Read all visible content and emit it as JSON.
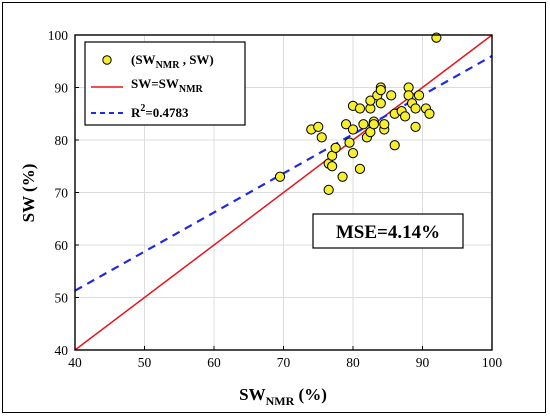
{
  "chart_data": {
    "type": "scatter",
    "xlabel": {
      "main": "SW",
      "sub": "NMR",
      "unit": " (%)"
    },
    "ylabel": "SW (%)",
    "xlim": [
      40,
      100
    ],
    "ylim": [
      40,
      100
    ],
    "xticks": [
      40,
      50,
      60,
      70,
      80,
      90,
      100
    ],
    "yticks": [
      40,
      50,
      60,
      70,
      80,
      90,
      100
    ],
    "grid": true,
    "legend_position": "top-left",
    "series": [
      {
        "name": "(SWNMR , SW)",
        "kind": "scatter",
        "color": "#f5ef2e",
        "edgecolor": "#000000",
        "points": [
          [
            69.5,
            73
          ],
          [
            74,
            82
          ],
          [
            75,
            82.5
          ],
          [
            75.5,
            80.5
          ],
          [
            76.5,
            75.5
          ],
          [
            76.5,
            70.5
          ],
          [
            77,
            77
          ],
          [
            77,
            75
          ],
          [
            77.5,
            78.5
          ],
          [
            78.5,
            73
          ],
          [
            79,
            83
          ],
          [
            79.5,
            79.5
          ],
          [
            80,
            82
          ],
          [
            80,
            86.5
          ],
          [
            80,
            77.5
          ],
          [
            81,
            86
          ],
          [
            81,
            74.5
          ],
          [
            81.5,
            83
          ],
          [
            82,
            80.5
          ],
          [
            82.5,
            86
          ],
          [
            82.5,
            87.5
          ],
          [
            82.5,
            81.5
          ],
          [
            83,
            83.5
          ],
          [
            83,
            83
          ],
          [
            83.5,
            88.5
          ],
          [
            84,
            90
          ],
          [
            84,
            87
          ],
          [
            84,
            89.5
          ],
          [
            84.5,
            82
          ],
          [
            84.5,
            83
          ],
          [
            85.5,
            88.5
          ],
          [
            86,
            79
          ],
          [
            86,
            85
          ],
          [
            87,
            85.5
          ],
          [
            87.5,
            84.5
          ],
          [
            88,
            90
          ],
          [
            88,
            88.5
          ],
          [
            88.5,
            87
          ],
          [
            89,
            82.5
          ],
          [
            89,
            86
          ],
          [
            89.5,
            88.5
          ],
          [
            90.5,
            86
          ],
          [
            91,
            85
          ],
          [
            92,
            99.5
          ]
        ]
      },
      {
        "name": "SW=SWNMR",
        "kind": "line",
        "color": "#e8141b",
        "style": "solid",
        "points": [
          [
            40,
            40
          ],
          [
            100,
            100
          ]
        ]
      },
      {
        "name": "R2=0.4783",
        "kind": "line",
        "color": "#1f2be0",
        "style": "dashed",
        "points": [
          [
            40,
            51.3
          ],
          [
            100,
            96
          ]
        ]
      }
    ],
    "annotations": [
      "MSE=4.14%"
    ]
  },
  "legend": [
    {
      "parts": [
        [
          "(SW",
          ""
        ],
        [
          "NMR",
          "sub"
        ],
        [
          " , SW)",
          ""
        ]
      ]
    },
    {
      "parts": [
        [
          "SW=SW",
          ""
        ],
        [
          "NMR",
          "sub"
        ]
      ]
    },
    {
      "parts": [
        [
          "R",
          ""
        ],
        [
          "2",
          "sup"
        ],
        [
          "=0.4783",
          ""
        ]
      ]
    }
  ]
}
